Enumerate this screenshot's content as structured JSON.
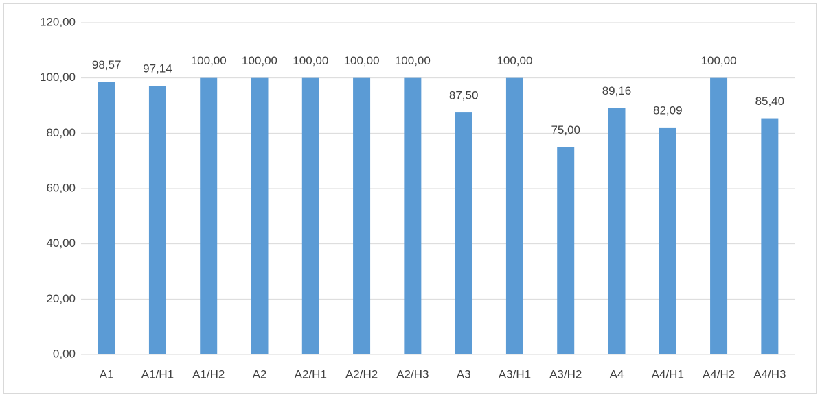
{
  "chart_data": {
    "type": "bar",
    "categories": [
      "A1",
      "A1/H1",
      "A1/H2",
      "A2",
      "A2/H1",
      "A2/H2",
      "A2/H3",
      "A3",
      "A3/H1",
      "A3/H2",
      "A4",
      "A4/H1",
      "A4/H2",
      "A4/H3"
    ],
    "values": [
      98.57,
      97.14,
      100,
      100,
      100,
      100,
      100,
      87.5,
      100,
      75,
      89.16,
      82.09,
      100,
      85.4
    ],
    "value_labels": [
      "98,57",
      "97,14",
      "100,00",
      "100,00",
      "100,00",
      "100,00",
      "100,00",
      "87,50",
      "100,00",
      "75,00",
      "89,16",
      "82,09",
      "100,00",
      "85,40"
    ],
    "color": "#5b9bd5",
    "ylim": [
      0,
      120
    ],
    "yticks": [
      {
        "value": 0,
        "label": "0,00"
      },
      {
        "value": 20,
        "label": "20,00"
      },
      {
        "value": 40,
        "label": "40,00"
      },
      {
        "value": 60,
        "label": "60,00"
      },
      {
        "value": 80,
        "label": "80,00"
      },
      {
        "value": 100,
        "label": "100,00"
      },
      {
        "value": 120,
        "label": "120,00"
      }
    ],
    "grid": true
  }
}
